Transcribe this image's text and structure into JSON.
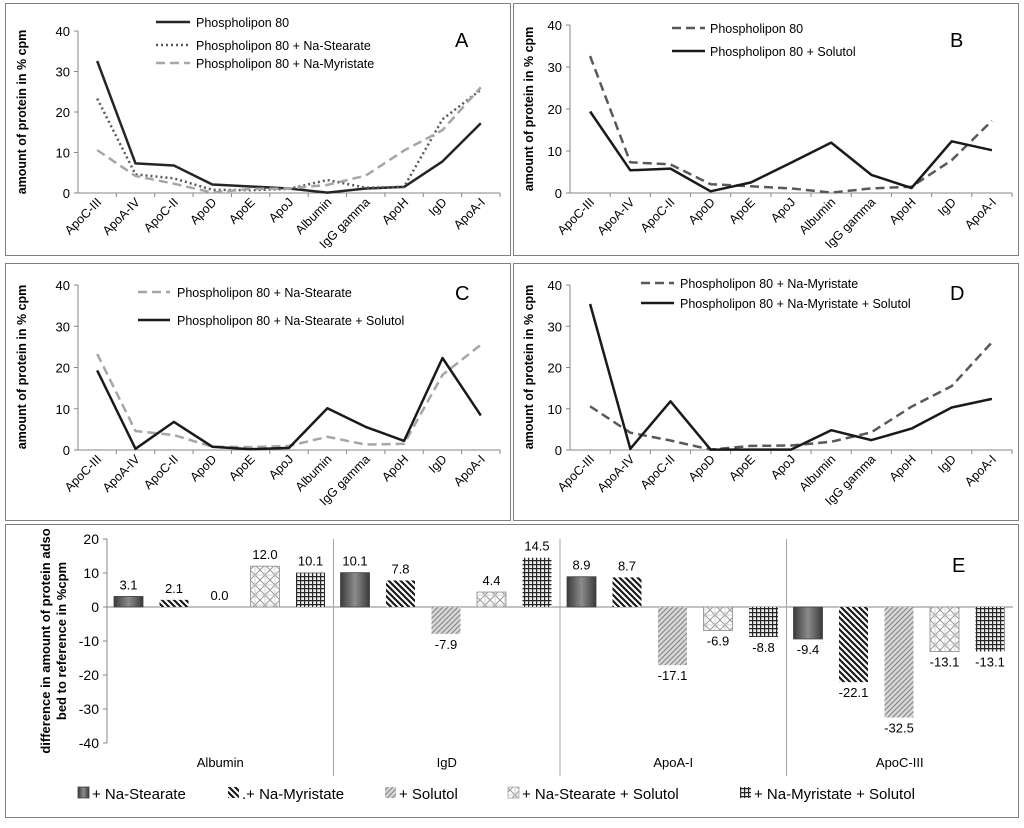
{
  "chart_data": [
    {
      "type": "line",
      "panel_letter": "A",
      "categories": [
        "ApoC-III",
        "ApoA-IV",
        "ApoC-II",
        "ApoD",
        "ApoE",
        "ApoJ",
        "Albumin",
        "IgG gamma",
        "ApoH",
        "IgD",
        "ApoA-I"
      ],
      "ylabel": "amount of protein in % cpm",
      "ylim": [
        0,
        40
      ],
      "yticks": [
        "0",
        "10",
        "20",
        "30",
        "40"
      ],
      "legend_position": "top-center",
      "series": [
        {
          "name": "Phospholipon 80",
          "style": "solid",
          "color": "#262626",
          "values": [
            32.6,
            7.3,
            6.8,
            2.1,
            1.6,
            1.1,
            0.1,
            1.1,
            1.5,
            7.8,
            17.2
          ]
        },
        {
          "name": "Phospholipon 80 + Na-Stearate",
          "style": "dotted",
          "color": "#595959",
          "values": [
            23.3,
            4.6,
            3.6,
            0.8,
            0.7,
            1.0,
            3.2,
            1.3,
            1.5,
            18.2,
            25.5
          ]
        },
        {
          "name": "Phospholipon 80 + Na-Myristate",
          "style": "dashed",
          "color": "#a6a6a6",
          "values": [
            10.6,
            4.2,
            2.3,
            0.1,
            1.0,
            1.1,
            2.0,
            4.3,
            10.5,
            15.5,
            26.1
          ]
        }
      ]
    },
    {
      "type": "line",
      "panel_letter": "B",
      "categories": [
        "ApoC-III",
        "ApoA-IV",
        "ApoC-II",
        "ApoD",
        "ApoE",
        "ApoJ",
        "Albumin",
        "IgG gamma",
        "ApoH",
        "IgD",
        "ApoA-I"
      ],
      "ylabel": "amount of protein in % cpm",
      "ylim": [
        0,
        40
      ],
      "yticks": [
        "0",
        "10",
        "20",
        "30",
        "40"
      ],
      "legend_position": "top-center",
      "series": [
        {
          "name": "Phospholipon 80",
          "style": "dashed",
          "color": "#595959",
          "values": [
            32.6,
            7.3,
            6.8,
            2.1,
            1.6,
            1.1,
            0.1,
            1.1,
            1.5,
            7.8,
            17.2
          ]
        },
        {
          "name": "Phospholipon 80 + Solutol",
          "style": "solid",
          "color": "#1a1a1a",
          "values": [
            19.4,
            5.4,
            5.8,
            0.4,
            2.5,
            7.2,
            12.0,
            4.3,
            1.2,
            12.3,
            10.2
          ]
        }
      ]
    },
    {
      "type": "line",
      "panel_letter": "C",
      "categories": [
        "ApoC-III",
        "ApoA-IV",
        "ApoC-II",
        "ApoD",
        "ApoE",
        "ApoJ",
        "Albumin",
        "IgG gamma",
        "ApoH",
        "IgD",
        "ApoA-I"
      ],
      "ylabel": "amount of protein in % cpm",
      "ylim": [
        0,
        40
      ],
      "yticks": [
        "0",
        "10",
        "20",
        "30",
        "40"
      ],
      "legend_position": "top-center",
      "series": [
        {
          "name": "Phospholipon 80 + Na-Stearate",
          "style": "dashed",
          "color": "#a6a6a6",
          "values": [
            23.3,
            4.6,
            3.6,
            0.8,
            0.7,
            1.0,
            3.2,
            1.3,
            1.5,
            18.2,
            25.5
          ]
        },
        {
          "name": "Phospholipon 80 + Na-Stearate  + Solutol",
          "style": "solid",
          "color": "#1a1a1a",
          "values": [
            19.3,
            0.3,
            6.8,
            0.8,
            0.2,
            0.5,
            10.1,
            5.6,
            2.2,
            22.3,
            8.4
          ]
        }
      ]
    },
    {
      "type": "line",
      "panel_letter": "D",
      "categories": [
        "ApoC-III",
        "ApoA-IV",
        "ApoC-II",
        "ApoD",
        "ApoE",
        "ApoJ",
        "Albumin",
        "IgG gamma",
        "ApoH",
        "IgD",
        "ApoA-I"
      ],
      "ylabel": "amount of protein in % cpm",
      "ylim": [
        0,
        40
      ],
      "yticks": [
        "0",
        "10",
        "20",
        "30",
        "40"
      ],
      "legend_position": "top-center",
      "series": [
        {
          "name": "Phospholipon 80 + Na-Myristate",
          "style": "dashed",
          "color": "#595959",
          "values": [
            10.6,
            4.2,
            2.3,
            0.1,
            1.0,
            1.1,
            2.0,
            4.3,
            10.5,
            15.5,
            26.1
          ]
        },
        {
          "name": "Phospholipon 80 + Na-Myristate + Solutol",
          "style": "solid",
          "color": "#1a1a1a",
          "values": [
            35.4,
            0.3,
            11.8,
            0.1,
            0.1,
            0.1,
            4.8,
            2.4,
            5.2,
            10.3,
            12.4
          ]
        }
      ]
    },
    {
      "type": "bar",
      "panel_letter": "E",
      "categories": [
        "Albumin",
        "IgD",
        "ApoA-I",
        "ApoC-III"
      ],
      "ylabel": "difference in amount of protein adsorbed to reference in %cpm",
      "ylim": [
        -40,
        20
      ],
      "yticks": [
        "20",
        "10",
        "0",
        "-10",
        "-20",
        "-30",
        "-40"
      ],
      "legend_position": "bottom",
      "series": [
        {
          "name": "+ Na-Stearate",
          "pattern": "solid-dark",
          "values": [
            3.1,
            10.1,
            8.9,
            -9.4
          ],
          "labels": [
            "3.1",
            "10.1",
            "8.9",
            "-9.4"
          ]
        },
        {
          "name": ".+ Na-Myristate",
          "pattern": "diag-dark",
          "values": [
            2.1,
            7.8,
            8.7,
            -22.1
          ],
          "labels": [
            "2.1",
            "7.8",
            "8.7",
            "-22.1"
          ]
        },
        {
          "name": "+ Solutol",
          "pattern": "diag-light",
          "values": [
            0.0,
            -7.9,
            -17.1,
            -32.5
          ],
          "labels": [
            "0.0",
            "-7.9",
            "-17.1",
            "-32.5"
          ]
        },
        {
          "name": "+ Na-Stearate  + Solutol",
          "pattern": "brick",
          "values": [
            12.0,
            4.4,
            -6.9,
            -13.1
          ],
          "labels": [
            "12.0",
            "4.4",
            "-6.9",
            "-13.1"
          ]
        },
        {
          "name": "+ Na-Myristate + Solutol",
          "pattern": "grid",
          "values": [
            10.1,
            14.5,
            -8.8,
            -13.1
          ],
          "labels": [
            "10.1",
            "14.5",
            "-8.8",
            "-13.1"
          ]
        }
      ]
    }
  ]
}
